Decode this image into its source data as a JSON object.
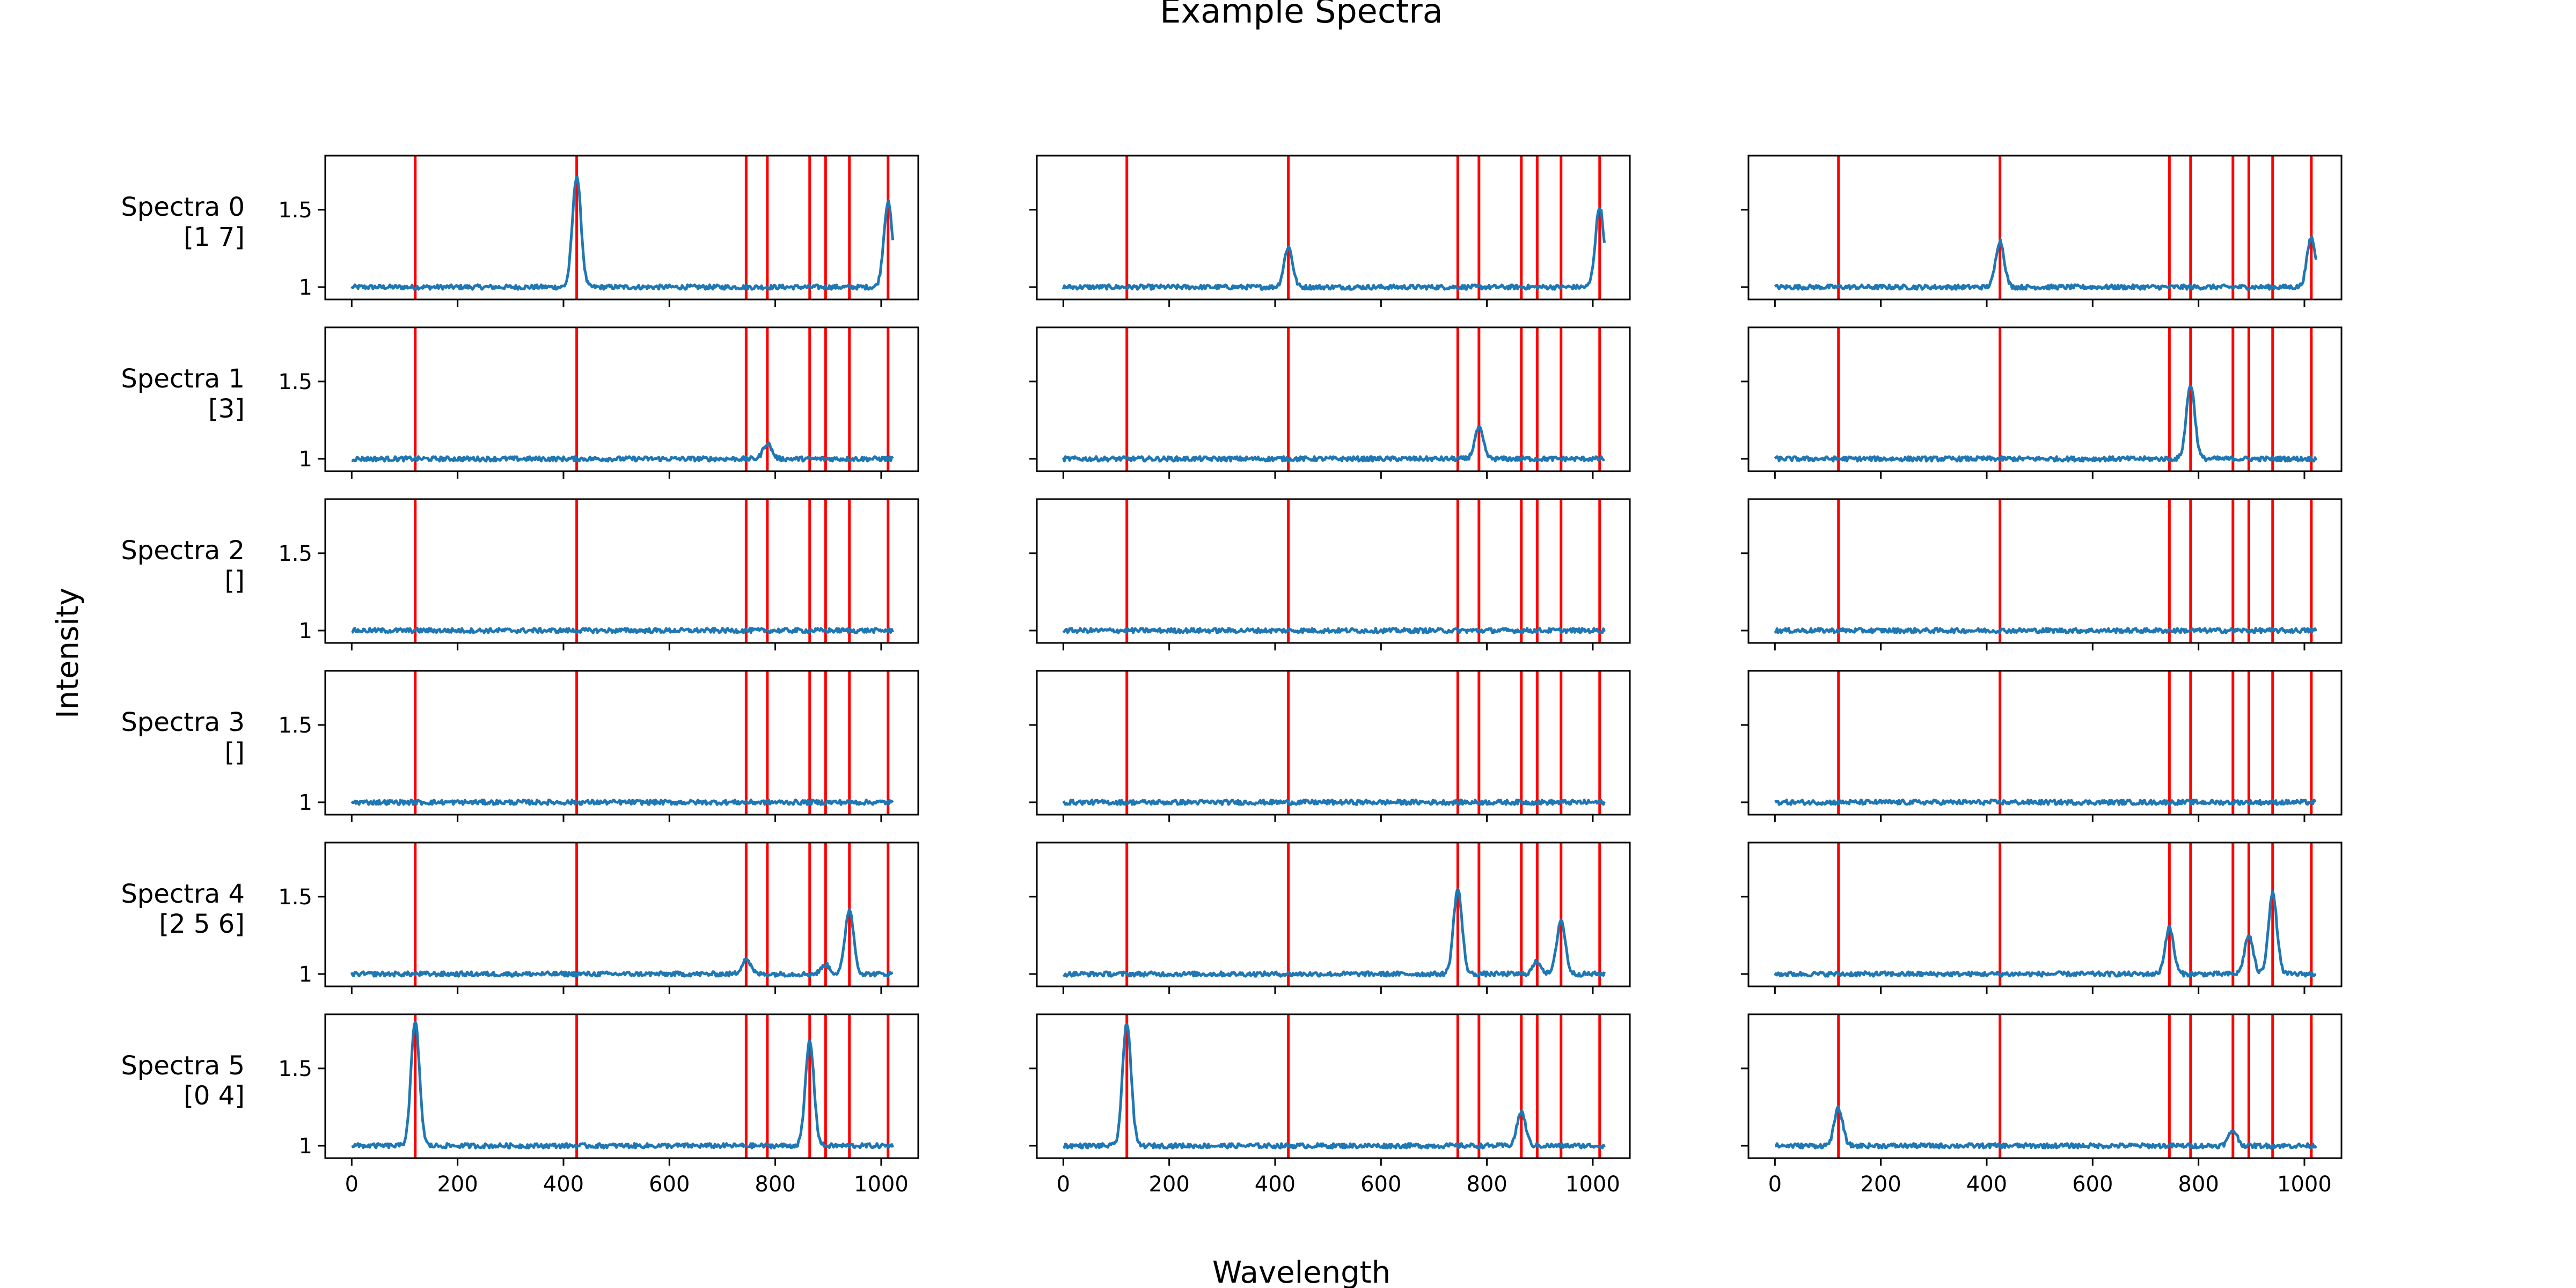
{
  "figure": {
    "title": "Example Spectra",
    "xlabel": "Wavelength",
    "ylabel": "Intensity"
  },
  "chart_data": {
    "type": "line",
    "title": "Example Spectra",
    "xlabel": "Wavelength",
    "ylabel": "Intensity",
    "xlim": [
      -50,
      1070
    ],
    "ylim": [
      0.92,
      1.85
    ],
    "xticks": [
      0,
      200,
      400,
      600,
      800,
      1000
    ],
    "yticks": [
      1.0,
      1.5
    ],
    "grid": false,
    "line_color": "#1f77b4",
    "marker_color": "#ff0000",
    "marker_positions": [
      120,
      425,
      745,
      785,
      865,
      895,
      940,
      1013
    ],
    "noise_amplitude": 0.015,
    "peak_width": 8,
    "rows": [
      {
        "label": "Spectra 0",
        "class_label": "[1 7]",
        "columns": [
          {
            "peaks": [
              {
                "x": 425,
                "height": 0.72
              },
              {
                "x": 1013,
                "height": 0.55
              }
            ]
          },
          {
            "peaks": [
              {
                "x": 425,
                "height": 0.26
              },
              {
                "x": 1013,
                "height": 0.52
              }
            ]
          },
          {
            "peaks": [
              {
                "x": 425,
                "height": 0.3
              },
              {
                "x": 1013,
                "height": 0.32
              }
            ]
          }
        ]
      },
      {
        "label": "Spectra 1",
        "class_label": "[3]",
        "columns": [
          {
            "peaks": [
              {
                "x": 785,
                "height": 0.1
              }
            ]
          },
          {
            "peaks": [
              {
                "x": 785,
                "height": 0.2
              }
            ]
          },
          {
            "peaks": [
              {
                "x": 785,
                "height": 0.48
              }
            ]
          }
        ]
      },
      {
        "label": "Spectra 2",
        "class_label": "[]",
        "columns": [
          {
            "peaks": []
          },
          {
            "peaks": []
          },
          {
            "peaks": []
          }
        ]
      },
      {
        "label": "Spectra 3",
        "class_label": "[]",
        "columns": [
          {
            "peaks": []
          },
          {
            "peaks": []
          },
          {
            "peaks": []
          }
        ]
      },
      {
        "label": "Spectra 4",
        "class_label": "[2 5 6]",
        "columns": [
          {
            "peaks": [
              {
                "x": 745,
                "height": 0.1
              },
              {
                "x": 895,
                "height": 0.06
              },
              {
                "x": 940,
                "height": 0.42
              }
            ]
          },
          {
            "peaks": [
              {
                "x": 745,
                "height": 0.55
              },
              {
                "x": 895,
                "height": 0.08
              },
              {
                "x": 940,
                "height": 0.35
              }
            ]
          },
          {
            "peaks": [
              {
                "x": 745,
                "height": 0.3
              },
              {
                "x": 895,
                "height": 0.25
              },
              {
                "x": 940,
                "height": 0.52
              }
            ]
          }
        ]
      },
      {
        "label": "Spectra 5",
        "class_label": "[0 4]",
        "columns": [
          {
            "peaks": [
              {
                "x": 120,
                "height": 0.8
              },
              {
                "x": 865,
                "height": 0.68
              }
            ]
          },
          {
            "peaks": [
              {
                "x": 120,
                "height": 0.8
              },
              {
                "x": 865,
                "height": 0.22
              }
            ]
          },
          {
            "peaks": [
              {
                "x": 120,
                "height": 0.24
              },
              {
                "x": 865,
                "height": 0.1
              }
            ]
          }
        ]
      }
    ]
  }
}
